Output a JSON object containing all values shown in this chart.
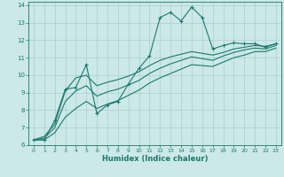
{
  "xlabel": "Humidex (Indice chaleur)",
  "bg_color": "#cce8e8",
  "grid_color": "#aacfcf",
  "line_color": "#1a7a6a",
  "xlim": [
    -0.5,
    23.5
  ],
  "ylim": [
    6,
    14.2
  ],
  "x_ticks": [
    0,
    1,
    2,
    3,
    4,
    5,
    6,
    7,
    8,
    9,
    10,
    11,
    12,
    13,
    14,
    15,
    16,
    17,
    18,
    19,
    20,
    21,
    22,
    23
  ],
  "y_ticks": [
    6,
    7,
    8,
    9,
    10,
    11,
    12,
    13,
    14
  ],
  "series_main": {
    "x": [
      0,
      1,
      2,
      3,
      4,
      5,
      6,
      7,
      8,
      9,
      10,
      11,
      12,
      13,
      14,
      15,
      16,
      17,
      18,
      19,
      20,
      21,
      22,
      23
    ],
    "y": [
      6.3,
      6.3,
      7.4,
      9.2,
      9.3,
      10.6,
      7.8,
      8.3,
      8.5,
      9.5,
      10.4,
      11.1,
      13.3,
      13.6,
      13.1,
      13.9,
      13.3,
      11.5,
      11.7,
      11.85,
      11.8,
      11.8,
      11.6,
      11.8
    ]
  },
  "series_smooth1": {
    "x": [
      0,
      1,
      2,
      3,
      4,
      5,
      6,
      7,
      8,
      9,
      10,
      11,
      12,
      13,
      14,
      15,
      16,
      17,
      18,
      19,
      20,
      21,
      22,
      23
    ],
    "y": [
      6.3,
      6.5,
      7.2,
      9.1,
      9.85,
      10.0,
      9.4,
      9.6,
      9.75,
      9.95,
      10.2,
      10.55,
      10.85,
      11.05,
      11.2,
      11.35,
      11.25,
      11.15,
      11.3,
      11.5,
      11.6,
      11.7,
      11.65,
      11.8
    ]
  },
  "series_smooth2": {
    "x": [
      0,
      1,
      2,
      3,
      4,
      5,
      6,
      7,
      8,
      9,
      10,
      11,
      12,
      13,
      14,
      15,
      16,
      17,
      18,
      19,
      20,
      21,
      22,
      23
    ],
    "y": [
      6.3,
      6.4,
      7.0,
      8.5,
      9.1,
      9.4,
      8.8,
      9.05,
      9.2,
      9.45,
      9.7,
      10.1,
      10.4,
      10.65,
      10.85,
      11.05,
      10.95,
      10.85,
      11.1,
      11.3,
      11.45,
      11.55,
      11.5,
      11.7
    ]
  },
  "series_smooth3": {
    "x": [
      0,
      1,
      2,
      3,
      4,
      5,
      6,
      7,
      8,
      9,
      10,
      11,
      12,
      13,
      14,
      15,
      16,
      17,
      18,
      19,
      20,
      21,
      22,
      23
    ],
    "y": [
      6.3,
      6.3,
      6.7,
      7.6,
      8.1,
      8.5,
      8.1,
      8.35,
      8.55,
      8.85,
      9.15,
      9.55,
      9.85,
      10.1,
      10.35,
      10.6,
      10.55,
      10.5,
      10.75,
      11.0,
      11.15,
      11.35,
      11.35,
      11.55
    ]
  }
}
